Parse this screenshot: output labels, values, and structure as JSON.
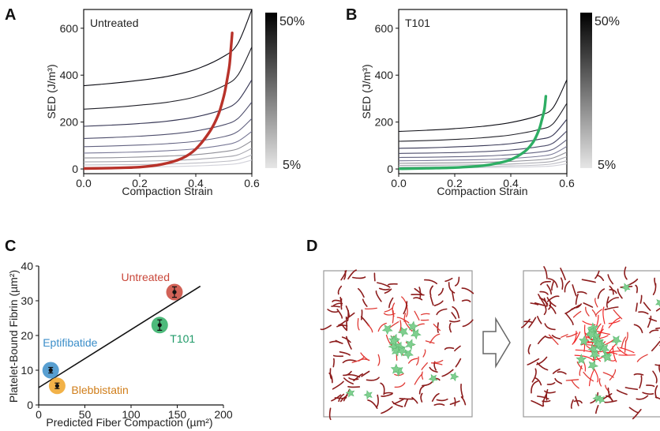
{
  "panels": {
    "a": {
      "letter": "A",
      "inset_label": "Untreated"
    },
    "b": {
      "letter": "B",
      "inset_label": "T101"
    },
    "c": {
      "letter": "C"
    },
    "d": {
      "letter": "D"
    }
  },
  "colorbar": {
    "top_label": "50%",
    "bottom_label": "5%"
  },
  "chart_data": [
    {
      "panel": "A",
      "type": "line",
      "title": "",
      "annotation": "Untreated",
      "xlabel": "Compaction Strain",
      "ylabel": "SED (J/m³)",
      "xlim": [
        0.0,
        0.6
      ],
      "ylim": [
        -20,
        680
      ],
      "xticks": [
        0.0,
        0.2,
        0.4,
        0.6
      ],
      "yticks": [
        0,
        200,
        400,
        600
      ],
      "xtick_labels": [
        "0.0",
        "0.2",
        "0.4",
        "0.6"
      ],
      "ytick_labels": [
        "0",
        "200",
        "400",
        "600"
      ],
      "iso_curve_colorbar": "5% to 50% (light gray to black)",
      "iso_curves": [
        {
          "level": "50%",
          "x": [
            0,
            0.1,
            0.2,
            0.3,
            0.4,
            0.5,
            0.55,
            0.6
          ],
          "y": [
            355,
            365,
            378,
            395,
            425,
            480,
            535,
            680
          ]
        },
        {
          "level": "45%",
          "x": [
            0,
            0.1,
            0.2,
            0.3,
            0.4,
            0.5,
            0.55,
            0.6
          ],
          "y": [
            255,
            262,
            272,
            285,
            308,
            355,
            400,
            520
          ]
        },
        {
          "level": "40%",
          "x": [
            0,
            0.1,
            0.2,
            0.3,
            0.4,
            0.5,
            0.55,
            0.6
          ],
          "y": [
            182,
            187,
            194,
            204,
            222,
            255,
            290,
            380
          ]
        },
        {
          "level": "35%",
          "x": [
            0,
            0.1,
            0.2,
            0.3,
            0.4,
            0.5,
            0.55,
            0.6
          ],
          "y": [
            130,
            134,
            140,
            148,
            162,
            188,
            215,
            285
          ]
        },
        {
          "level": "30%",
          "x": [
            0,
            0.1,
            0.2,
            0.3,
            0.4,
            0.5,
            0.55,
            0.6
          ],
          "y": [
            95,
            98,
            102,
            108,
            118,
            138,
            160,
            215
          ]
        },
        {
          "level": "25%",
          "x": [
            0,
            0.1,
            0.2,
            0.3,
            0.4,
            0.5,
            0.55,
            0.6
          ],
          "y": [
            68,
            70,
            73,
            78,
            86,
            102,
            118,
            160
          ]
        },
        {
          "level": "20%",
          "x": [
            0,
            0.1,
            0.2,
            0.3,
            0.4,
            0.5,
            0.55,
            0.6
          ],
          "y": [
            47,
            48,
            51,
            55,
            61,
            74,
            86,
            120
          ]
        },
        {
          "level": "15%",
          "x": [
            0,
            0.1,
            0.2,
            0.3,
            0.4,
            0.5,
            0.55,
            0.6
          ],
          "y": [
            30,
            31,
            33,
            36,
            41,
            51,
            60,
            88
          ]
        },
        {
          "level": "10%",
          "x": [
            0,
            0.1,
            0.2,
            0.3,
            0.4,
            0.5,
            0.55,
            0.6
          ],
          "y": [
            17,
            18,
            19,
            21,
            25,
            32,
            39,
            60
          ]
        },
        {
          "level": "5%",
          "x": [
            0,
            0.1,
            0.2,
            0.3,
            0.4,
            0.5,
            0.55,
            0.6
          ],
          "y": [
            7,
            8,
            9,
            10,
            13,
            18,
            23,
            38
          ]
        }
      ],
      "highlight": {
        "color": "#b8322a",
        "x": [
          0,
          0.1,
          0.2,
          0.28,
          0.35,
          0.4,
          0.45,
          0.48,
          0.5,
          0.51,
          0.52,
          0.525,
          0.53
        ],
        "y": [
          2,
          4,
          8,
          20,
          45,
          85,
          160,
          230,
          310,
          370,
          440,
          510,
          580
        ]
      }
    },
    {
      "panel": "B",
      "type": "line",
      "title": "",
      "annotation": "T101",
      "xlabel": "Compaction Strain",
      "ylabel": "SED (J/m³)",
      "xlim": [
        0.0,
        0.6
      ],
      "ylim": [
        -20,
        680
      ],
      "xticks": [
        0.0,
        0.2,
        0.4,
        0.6
      ],
      "yticks": [
        0,
        200,
        400,
        600
      ],
      "xtick_labels": [
        "0.0",
        "0.2",
        "0.4",
        "0.6"
      ],
      "ytick_labels": [
        "0",
        "200",
        "400",
        "600"
      ],
      "iso_curve_colorbar": "5% to 50% (light gray to black)",
      "iso_curves": [
        {
          "level": "50%",
          "x": [
            0,
            0.1,
            0.2,
            0.3,
            0.4,
            0.5,
            0.55,
            0.6
          ],
          "y": [
            160,
            165,
            172,
            182,
            198,
            228,
            260,
            380
          ]
        },
        {
          "level": "45%",
          "x": [
            0,
            0.1,
            0.2,
            0.3,
            0.4,
            0.5,
            0.55,
            0.6
          ],
          "y": [
            118,
            121,
            126,
            133,
            145,
            168,
            192,
            280
          ]
        },
        {
          "level": "40%",
          "x": [
            0,
            0.1,
            0.2,
            0.3,
            0.4,
            0.5,
            0.55,
            0.6
          ],
          "y": [
            88,
            90,
            94,
            99,
            108,
            126,
            144,
            212
          ]
        },
        {
          "level": "35%",
          "x": [
            0,
            0.1,
            0.2,
            0.3,
            0.4,
            0.5,
            0.55,
            0.6
          ],
          "y": [
            66,
            68,
            70,
            74,
            81,
            95,
            110,
            162
          ]
        },
        {
          "level": "30%",
          "x": [
            0,
            0.1,
            0.2,
            0.3,
            0.4,
            0.5,
            0.55,
            0.6
          ],
          "y": [
            49,
            50,
            52,
            55,
            61,
            72,
            84,
            125
          ]
        },
        {
          "level": "25%",
          "x": [
            0,
            0.1,
            0.2,
            0.3,
            0.4,
            0.5,
            0.55,
            0.6
          ],
          "y": [
            35,
            36,
            38,
            40,
            45,
            54,
            64,
            96
          ]
        },
        {
          "level": "20%",
          "x": [
            0,
            0.1,
            0.2,
            0.3,
            0.4,
            0.5,
            0.55,
            0.6
          ],
          "y": [
            24,
            25,
            26,
            28,
            32,
            39,
            47,
            72
          ]
        },
        {
          "level": "15%",
          "x": [
            0,
            0.1,
            0.2,
            0.3,
            0.4,
            0.5,
            0.55,
            0.6
          ],
          "y": [
            15,
            16,
            17,
            18,
            21,
            27,
            33,
            52
          ]
        },
        {
          "level": "10%",
          "x": [
            0,
            0.1,
            0.2,
            0.3,
            0.4,
            0.5,
            0.55,
            0.6
          ],
          "y": [
            8,
            9,
            10,
            11,
            13,
            17,
            22,
            35
          ]
        },
        {
          "level": "5%",
          "x": [
            0,
            0.1,
            0.2,
            0.3,
            0.4,
            0.5,
            0.55,
            0.6
          ],
          "y": [
            3,
            4,
            5,
            6,
            7,
            10,
            13,
            22
          ]
        }
      ],
      "highlight": {
        "color": "#2eae64",
        "x": [
          0,
          0.1,
          0.2,
          0.3,
          0.35,
          0.4,
          0.45,
          0.48,
          0.5,
          0.51,
          0.52,
          0.525
        ],
        "y": [
          1,
          3,
          6,
          14,
          24,
          40,
          75,
          115,
          165,
          205,
          255,
          310
        ]
      }
    },
    {
      "panel": "C",
      "type": "scatter",
      "title": "",
      "xlabel": "Predicted Fiber Compaction (µm²)",
      "ylabel": "Platelet-Bound Fibrin (µm²)",
      "xlim": [
        0,
        200
      ],
      "ylim": [
        0,
        40
      ],
      "xticks": [
        0,
        50,
        100,
        150,
        200
      ],
      "yticks": [
        0,
        10,
        20,
        30,
        40
      ],
      "xtick_labels": [
        "0",
        "50",
        "100",
        "150",
        "200"
      ],
      "ytick_labels": [
        "0",
        "10",
        "20",
        "30",
        "40"
      ],
      "points": [
        {
          "label": "Untreated",
          "x": 147,
          "y": 32.5,
          "err": 1.5,
          "color": "#c9473a",
          "label_color": "#c9473a"
        },
        {
          "label": "T101",
          "x": 131,
          "y": 23.0,
          "err": 1.5,
          "color": "#2eae64",
          "label_color": "#1f9a68"
        },
        {
          "label": "Eptifibatide",
          "x": 13,
          "y": 10.0,
          "err": 0.8,
          "color": "#3b8ec9",
          "label_color": "#3b8ec9"
        },
        {
          "label": "Blebbistatin",
          "x": 20,
          "y": 5.5,
          "err": 0.8,
          "color": "#f0a428",
          "label_color": "#d07e1a"
        }
      ],
      "fit_line": {
        "x": [
          0,
          175
        ],
        "y": [
          5,
          34.2
        ]
      }
    }
  ]
}
